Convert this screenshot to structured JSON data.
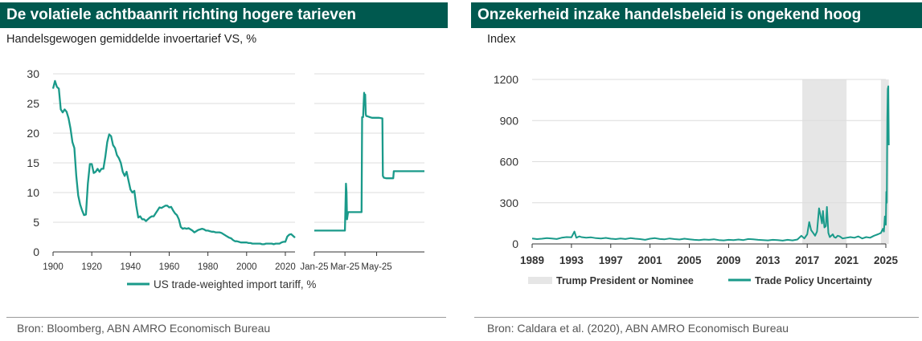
{
  "left_panel": {
    "title": "De volatiele achtbaanrit richting hogere tarieven",
    "subtitle": "Handelsgewogen gemiddelde invoertarief VS, %",
    "source": "Bron: Bloomberg, ABN AMRO Economisch Bureau"
  },
  "right_panel": {
    "title": "Onzekerheid inzake handelsbeleid is ongekend hoog",
    "subtitle": "Index",
    "source": "Bron: Caldara et al. (2020), ABN AMRO Economisch Bureau"
  },
  "colors": {
    "accent": "#00594f",
    "series": "#1a9a8a",
    "shade": "#e6e6e6",
    "grid": "#dcdcdc"
  },
  "chart_data": [
    {
      "type": "line",
      "id": "tariff-long",
      "title": "De volatiele achtbaanrit richting hogere tarieven",
      "ylabel": "Handelsgewogen gemiddelde invoertarief VS, %",
      "xlim": [
        1900,
        2025
      ],
      "ylim": [
        0,
        30
      ],
      "x_ticks": [
        1900,
        1920,
        1940,
        1960,
        1980,
        2000,
        2020
      ],
      "y_ticks": [
        0,
        5,
        10,
        15,
        20,
        25,
        30
      ],
      "grid": true,
      "legend_position": "bottom",
      "series": [
        {
          "name": "US trade-weighted import tariff, %",
          "x": [
            1900,
            1901,
            1902,
            1903,
            1904,
            1905,
            1906,
            1907,
            1908,
            1909,
            1910,
            1911,
            1912,
            1913,
            1914,
            1915,
            1916,
            1917,
            1918,
            1919,
            1920,
            1921,
            1922,
            1923,
            1924,
            1925,
            1926,
            1927,
            1928,
            1929,
            1930,
            1931,
            1932,
            1933,
            1934,
            1935,
            1936,
            1937,
            1938,
            1939,
            1940,
            1941,
            1942,
            1943,
            1944,
            1945,
            1946,
            1947,
            1948,
            1949,
            1950,
            1951,
            1952,
            1953,
            1954,
            1955,
            1956,
            1957,
            1958,
            1959,
            1960,
            1961,
            1962,
            1963,
            1964,
            1965,
            1966,
            1967,
            1968,
            1969,
            1970,
            1971,
            1972,
            1973,
            1974,
            1975,
            1976,
            1977,
            1978,
            1979,
            1980,
            1981,
            1982,
            1983,
            1984,
            1985,
            1986,
            1987,
            1988,
            1989,
            1990,
            1991,
            1992,
            1993,
            1994,
            1995,
            1996,
            1997,
            1998,
            1999,
            2000,
            2001,
            2002,
            2003,
            2004,
            2005,
            2006,
            2007,
            2008,
            2009,
            2010,
            2011,
            2012,
            2013,
            2014,
            2015,
            2016,
            2017,
            2018,
            2019,
            2020,
            2021,
            2022,
            2023,
            2024,
            2025
          ],
          "y": [
            27.5,
            28.8,
            27.8,
            27.5,
            24.0,
            23.5,
            24.0,
            23.6,
            22.5,
            20.8,
            18.5,
            17.5,
            12.8,
            9.5,
            8.0,
            7.0,
            6.2,
            6.3,
            11.5,
            14.8,
            14.8,
            13.3,
            13.5,
            14.0,
            13.5,
            14.0,
            14.0,
            16.0,
            18.5,
            19.8,
            19.5,
            18.0,
            17.5,
            16.3,
            15.8,
            15.0,
            13.5,
            12.8,
            13.5,
            12.0,
            10.5,
            10.0,
            10.3,
            7.8,
            5.8,
            6.0,
            5.5,
            5.5,
            5.2,
            5.5,
            5.8,
            6.0,
            6.0,
            6.5,
            7.0,
            7.5,
            7.4,
            7.6,
            7.8,
            7.8,
            7.5,
            7.6,
            7.0,
            6.5,
            6.2,
            5.5,
            4.2,
            3.9,
            4.0,
            3.9,
            4.0,
            3.8,
            3.6,
            3.3,
            3.5,
            3.7,
            3.8,
            3.9,
            3.8,
            3.6,
            3.6,
            3.5,
            3.4,
            3.4,
            3.3,
            3.3,
            3.3,
            3.2,
            3.0,
            2.8,
            2.6,
            2.4,
            2.3,
            2.0,
            1.8,
            1.8,
            1.7,
            1.6,
            1.6,
            1.6,
            1.6,
            1.5,
            1.5,
            1.4,
            1.4,
            1.4,
            1.4,
            1.4,
            1.3,
            1.3,
            1.4,
            1.4,
            1.4,
            1.4,
            1.3,
            1.4,
            1.4,
            1.4,
            1.6,
            1.7,
            1.7,
            2.6,
            2.9,
            3.0,
            2.7,
            2.4
          ]
        }
      ]
    },
    {
      "type": "line",
      "id": "tariff-2025",
      "xlim": [
        "Jan-25",
        "Aug-25"
      ],
      "ylim": [
        0,
        30
      ],
      "x_ticks": [
        "Jan-25",
        "Mar-25",
        "May-25"
      ],
      "grid": true,
      "series": [
        {
          "name": "US trade-weighted import tariff, %",
          "x": [
            "2025-01-01",
            "2025-02-28",
            "2025-03-01",
            "2025-03-03",
            "2025-03-04",
            "2025-03-05",
            "2025-03-07",
            "2025-03-12",
            "2025-04-02",
            "2025-04-03",
            "2025-04-05",
            "2025-04-07",
            "2025-04-08",
            "2025-04-09",
            "2025-04-10",
            "2025-04-11",
            "2025-04-15",
            "2025-04-18",
            "2025-04-22",
            "2025-05-05",
            "2025-05-12",
            "2025-05-13",
            "2025-05-15",
            "2025-05-20",
            "2025-06-02",
            "2025-06-03",
            "2025-08-01"
          ],
          "y": [
            3.6,
            3.6,
            3.6,
            11.5,
            10.0,
            5.5,
            6.7,
            6.7,
            6.7,
            22.7,
            22.7,
            26.8,
            25.8,
            26.5,
            23.2,
            22.9,
            22.8,
            22.7,
            22.6,
            22.6,
            22.5,
            12.8,
            12.5,
            12.4,
            12.4,
            13.6,
            13.6
          ]
        }
      ]
    },
    {
      "type": "line",
      "id": "trade-policy-uncertainty",
      "title": "Onzekerheid inzake handelsbeleid is ongekend hoog",
      "ylabel": "Index",
      "xlim": [
        1989,
        2025
      ],
      "ylim": [
        0,
        1200
      ],
      "x_ticks": [
        1989,
        1993,
        1997,
        2001,
        2005,
        2009,
        2013,
        2017,
        2021,
        2025
      ],
      "y_ticks": [
        0,
        300,
        600,
        900,
        1200
      ],
      "grid": true,
      "legend_position": "bottom",
      "shaded_ranges": [
        {
          "name": "Trump President or Nominee",
          "x": [
            2016.5,
            2021.0
          ]
        },
        {
          "name": "Trump President or Nominee",
          "x": [
            2024.5,
            2025.3
          ]
        }
      ],
      "series": [
        {
          "name": "Trade Policy Uncertainty",
          "x": [
            1989.0,
            1989.5,
            1990.0,
            1990.5,
            1991.0,
            1991.5,
            1992.0,
            1992.5,
            1993.0,
            1993.3,
            1993.5,
            1993.8,
            1994.0,
            1994.5,
            1995.0,
            1995.5,
            1996.0,
            1996.5,
            1997.0,
            1997.5,
            1998.0,
            1998.5,
            1999.0,
            1999.5,
            2000.0,
            2000.5,
            2001.0,
            2001.5,
            2002.0,
            2002.5,
            2003.0,
            2003.5,
            2004.0,
            2004.5,
            2005.0,
            2005.5,
            2006.0,
            2006.5,
            2007.0,
            2007.5,
            2008.0,
            2008.5,
            2009.0,
            2009.5,
            2010.0,
            2010.5,
            2011.0,
            2011.5,
            2012.0,
            2012.5,
            2013.0,
            2013.5,
            2014.0,
            2014.5,
            2015.0,
            2015.5,
            2016.0,
            2016.4,
            2016.7,
            2017.0,
            2017.2,
            2017.4,
            2017.6,
            2017.8,
            2018.0,
            2018.2,
            2018.35,
            2018.5,
            2018.6,
            2018.75,
            2018.9,
            2019.0,
            2019.15,
            2019.3,
            2019.45,
            2019.6,
            2019.75,
            2019.9,
            2020.1,
            2020.3,
            2020.6,
            2021.0,
            2021.4,
            2021.8,
            2022.2,
            2022.6,
            2023.0,
            2023.4,
            2023.8,
            2024.2,
            2024.5,
            2024.7,
            2024.8,
            2024.9,
            2025.0,
            2025.05,
            2025.1,
            2025.15,
            2025.2,
            2025.25,
            2025.3
          ],
          "y": [
            40,
            35,
            38,
            42,
            40,
            36,
            45,
            50,
            48,
            90,
            45,
            55,
            50,
            45,
            48,
            42,
            40,
            44,
            38,
            35,
            40,
            36,
            42,
            38,
            35,
            30,
            38,
            42,
            36,
            34,
            40,
            35,
            32,
            38,
            34,
            30,
            28,
            32,
            30,
            34,
            28,
            26,
            30,
            28,
            32,
            28,
            36,
            34,
            30,
            28,
            26,
            30,
            28,
            24,
            30,
            26,
            32,
            60,
            40,
            70,
            160,
            100,
            80,
            60,
            90,
            260,
            210,
            150,
            240,
            120,
            130,
            270,
            80,
            50,
            60,
            70,
            50,
            45,
            60,
            55,
            40,
            45,
            50,
            45,
            55,
            40,
            50,
            45,
            60,
            70,
            80,
            110,
            90,
            200,
            140,
            380,
            300,
            900,
            1130,
            1150,
            720
          ]
        }
      ]
    }
  ]
}
